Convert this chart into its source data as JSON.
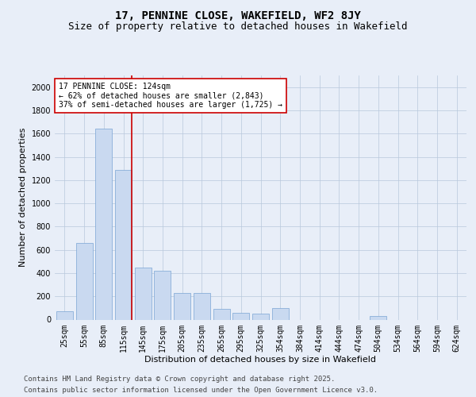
{
  "title1": "17, PENNINE CLOSE, WAKEFIELD, WF2 8JY",
  "title2": "Size of property relative to detached houses in Wakefield",
  "xlabel": "Distribution of detached houses by size in Wakefield",
  "ylabel": "Number of detached properties",
  "categories": [
    "25sqm",
    "55sqm",
    "85sqm",
    "115sqm",
    "145sqm",
    "175sqm",
    "205sqm",
    "235sqm",
    "265sqm",
    "295sqm",
    "325sqm",
    "354sqm",
    "384sqm",
    "414sqm",
    "444sqm",
    "474sqm",
    "504sqm",
    "534sqm",
    "564sqm",
    "594sqm",
    "624sqm"
  ],
  "values": [
    75,
    660,
    1640,
    1290,
    450,
    420,
    230,
    230,
    90,
    55,
    50,
    100,
    0,
    0,
    0,
    0,
    30,
    0,
    0,
    0,
    0
  ],
  "bar_color": "#c9d9f0",
  "bar_edge_color": "#7aa4d4",
  "vline_index": 3.42,
  "annotation_text": "17 PENNINE CLOSE: 124sqm\n← 62% of detached houses are smaller (2,843)\n37% of semi-detached houses are larger (1,725) →",
  "annotation_box_color": "#ffffff",
  "annotation_box_edge": "#cc0000",
  "vline_color": "#cc0000",
  "ylim": [
    0,
    2100
  ],
  "yticks": [
    0,
    200,
    400,
    600,
    800,
    1000,
    1200,
    1400,
    1600,
    1800,
    2000
  ],
  "footer1": "Contains HM Land Registry data © Crown copyright and database right 2025.",
  "footer2": "Contains public sector information licensed under the Open Government Licence v3.0.",
  "bg_color": "#e8eef8",
  "plot_bg_color": "#e8eef8",
  "title_fontsize": 10,
  "subtitle_fontsize": 9,
  "axis_label_fontsize": 8,
  "tick_fontsize": 7,
  "annotation_fontsize": 7,
  "footer_fontsize": 6.5
}
